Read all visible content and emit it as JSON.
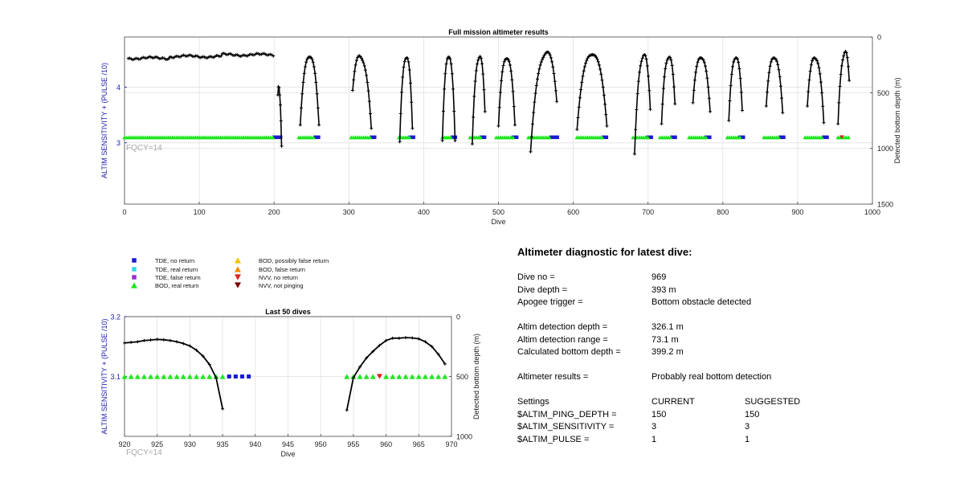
{
  "colors": {
    "tde_no_return": "#1a1ad6",
    "tde_real_return": "#33d6e6",
    "tde_false_return": "#9b30d0",
    "bod_real_return": "#1ee61e",
    "bod_possibly_false": "#f2c200",
    "bod_false_return": "#f28c00",
    "nvv_no_return": "#e02020",
    "nvv_not_pinging": "#7a0000",
    "depth_line": "#000000",
    "axis_left": "#1a1ab0"
  },
  "legend": {
    "items": [
      {
        "label": "TDE, no return",
        "marker": "square",
        "color": "#1a1ad6"
      },
      {
        "label": "TDE, real return",
        "marker": "square",
        "color": "#33d6e6"
      },
      {
        "label": "TDE, false return",
        "marker": "square",
        "color": "#9b30d0"
      },
      {
        "label": "BOD, real return",
        "marker": "triangle-up",
        "color": "#1ee61e"
      },
      {
        "label": "BOD, possibly false return",
        "marker": "triangle-up",
        "color": "#f2c200"
      },
      {
        "label": "BOD, false return",
        "marker": "triangle-up",
        "color": "#f28c00"
      },
      {
        "label": "NVV, no return",
        "marker": "triangle-down",
        "color": "#e02020"
      },
      {
        "label": "NVV, not pinging",
        "marker": "triangle-down",
        "color": "#7a0000"
      }
    ]
  },
  "chart_data": [
    {
      "type": "scatter",
      "title": "Full mission altimeter results",
      "xlabel": "Dive",
      "ylabel": "ALTIM SENSITIVITY + (PULSE /10)",
      "y2label": "Detected bottom depth (m)",
      "annotation": "FQCY=14",
      "xlim": [
        0,
        1000
      ],
      "ylim": [
        1.9,
        4.9
      ],
      "y2lim": [
        0,
        1500
      ],
      "y2_reversed": true,
      "xticks": [
        0,
        100,
        200,
        300,
        400,
        500,
        600,
        700,
        800,
        900,
        1000
      ],
      "yticks": [
        3,
        4
      ],
      "y2ticks": [
        0,
        500,
        1000,
        1500
      ],
      "grid": true,
      "setting_value": 3.1,
      "early_bottom": {
        "x_start": 5,
        "x_end": 200,
        "depth_base": 170,
        "depth_var": 25
      },
      "arches": [
        {
          "x_start": 205,
          "x_end": 210,
          "depth_start": 520,
          "depth_apex": 520,
          "depth_end": 980
        },
        {
          "x_start": 235,
          "x_end": 260,
          "depth_start": 790,
          "depth_apex": 180,
          "depth_end": 790
        },
        {
          "x_start": 305,
          "x_end": 330,
          "depth_start": 480,
          "depth_apex": 200,
          "depth_end": 820
        },
        {
          "x_start": 368,
          "x_end": 385,
          "depth_start": 940,
          "depth_apex": 190,
          "depth_end": 820
        },
        {
          "x_start": 425,
          "x_end": 442,
          "depth_start": 930,
          "depth_apex": 180,
          "depth_end": 930
        },
        {
          "x_start": 465,
          "x_end": 482,
          "depth_start": 960,
          "depth_apex": 195,
          "depth_end": 670
        },
        {
          "x_start": 500,
          "x_end": 522,
          "depth_start": 800,
          "depth_apex": 195,
          "depth_end": 790
        },
        {
          "x_start": 543,
          "x_end": 578,
          "depth_start": 1030,
          "depth_apex": 175,
          "depth_end": 580
        },
        {
          "x_start": 605,
          "x_end": 645,
          "depth_start": 830,
          "depth_apex": 160,
          "depth_end": 800
        },
        {
          "x_start": 682,
          "x_end": 703,
          "depth_start": 1050,
          "depth_apex": 190,
          "depth_end": 650
        },
        {
          "x_start": 718,
          "x_end": 736,
          "depth_start": 780,
          "depth_apex": 190,
          "depth_end": 600
        },
        {
          "x_start": 760,
          "x_end": 783,
          "depth_start": 590,
          "depth_apex": 190,
          "depth_end": 670
        },
        {
          "x_start": 808,
          "x_end": 826,
          "depth_start": 750,
          "depth_apex": 190,
          "depth_end": 660
        },
        {
          "x_start": 858,
          "x_end": 880,
          "depth_start": 620,
          "depth_apex": 190,
          "depth_end": 680
        },
        {
          "x_start": 913,
          "x_end": 935,
          "depth_start": 620,
          "depth_apex": 195,
          "depth_end": 770
        },
        {
          "x_start": 954,
          "x_end": 969,
          "depth_start": 780,
          "depth_apex": 170,
          "depth_end": 390
        }
      ],
      "bod_segments": [
        [
          0,
          200
        ],
        [
          233,
          255
        ],
        [
          303,
          330
        ],
        [
          367,
          382
        ],
        [
          425,
          438
        ],
        [
          462,
          477
        ],
        [
          497,
          520
        ],
        [
          540,
          570
        ],
        [
          605,
          640
        ],
        [
          680,
          700
        ],
        [
          716,
          732
        ],
        [
          755,
          778
        ],
        [
          806,
          823
        ],
        [
          855,
          877
        ],
        [
          910,
          935
        ],
        [
          954,
          969
        ]
      ],
      "tde_segments": [
        [
          200,
          210
        ],
        [
          255,
          262
        ],
        [
          330,
          336
        ],
        [
          382,
          390
        ],
        [
          438,
          445
        ],
        [
          477,
          485
        ],
        [
          520,
          528
        ],
        [
          570,
          580
        ],
        [
          640,
          648
        ],
        [
          700,
          708
        ],
        [
          732,
          740
        ],
        [
          778,
          785
        ],
        [
          823,
          830
        ],
        [
          877,
          885
        ],
        [
          935,
          940
        ]
      ],
      "nvv_no_return_dives": [
        959
      ]
    },
    {
      "type": "scatter",
      "title": "Last 50 dives",
      "xlabel": "Dive",
      "ylabel": "ALTIM SENSITIVITY + (PULSE /10)",
      "y2label": "Detected bottom depth (m)",
      "annotation": "FQCY=14",
      "xlim": [
        920,
        970
      ],
      "ylim": [
        3.0,
        3.2
      ],
      "y2lim": [
        0,
        1000
      ],
      "y2_reversed": true,
      "xticks": [
        920,
        925,
        930,
        935,
        940,
        945,
        950,
        955,
        960,
        965,
        970
      ],
      "yticks": [
        3.1,
        3.2
      ],
      "y2ticks": [
        0,
        500,
        1000
      ],
      "grid": true,
      "setting_value": 3.1,
      "depth_series": [
        {
          "x": [
            920,
            921,
            922,
            923,
            924,
            925,
            926,
            927,
            928,
            929,
            930,
            931,
            932,
            933,
            934,
            935
          ],
          "y": [
            220,
            215,
            210,
            200,
            195,
            190,
            193,
            200,
            210,
            225,
            245,
            280,
            330,
            400,
            510,
            770
          ]
        },
        {
          "x": [
            954,
            955,
            956,
            957,
            958,
            959,
            960,
            961,
            962,
            963,
            964,
            965,
            966,
            967,
            968,
            969
          ],
          "y": [
            780,
            510,
            420,
            345,
            290,
            240,
            200,
            180,
            180,
            175,
            178,
            185,
            210,
            250,
            315,
            395
          ]
        }
      ],
      "bod_dives": [
        920,
        921,
        922,
        923,
        924,
        925,
        926,
        927,
        928,
        929,
        930,
        931,
        932,
        933,
        934,
        935,
        954,
        955,
        956,
        957,
        958,
        960,
        961,
        962,
        963,
        964,
        965,
        966,
        967,
        968,
        969
      ],
      "tde_no_return_dives": [
        936,
        937,
        938,
        939
      ],
      "nvv_no_return_dives": [
        959
      ]
    }
  ],
  "diagnostic": {
    "title": "Altimeter diagnostic for latest dive:",
    "dive_no_label": "Dive no =",
    "dive_no_value": "969",
    "dive_depth_label": "Dive depth =",
    "dive_depth_value": "393 m",
    "apogee_label": "Apogee trigger =",
    "apogee_value": "Bottom obstacle detected",
    "altim_det_depth_label": "Altim detection depth =",
    "altim_det_depth_value": "326.1 m",
    "altim_det_range_label": "Altim detection range =",
    "altim_det_range_value": "73.1 m",
    "calc_bottom_label": "Calculated bottom depth =",
    "calc_bottom_value": "399.2 m",
    "results_label": "Altimeter results =",
    "results_value": "Probably real bottom detection",
    "settings_header": "Settings",
    "current_header": "CURRENT",
    "suggested_header": "SUGGESTED",
    "settings": [
      {
        "name": "$ALTIM_PING_DEPTH =",
        "current": "150",
        "suggested": "150"
      },
      {
        "name": "$ALTIM_SENSITIVITY =",
        "current": "3",
        "suggested": "3"
      },
      {
        "name": "$ALTIM_PULSE =",
        "current": "1",
        "suggested": "1"
      }
    ]
  }
}
